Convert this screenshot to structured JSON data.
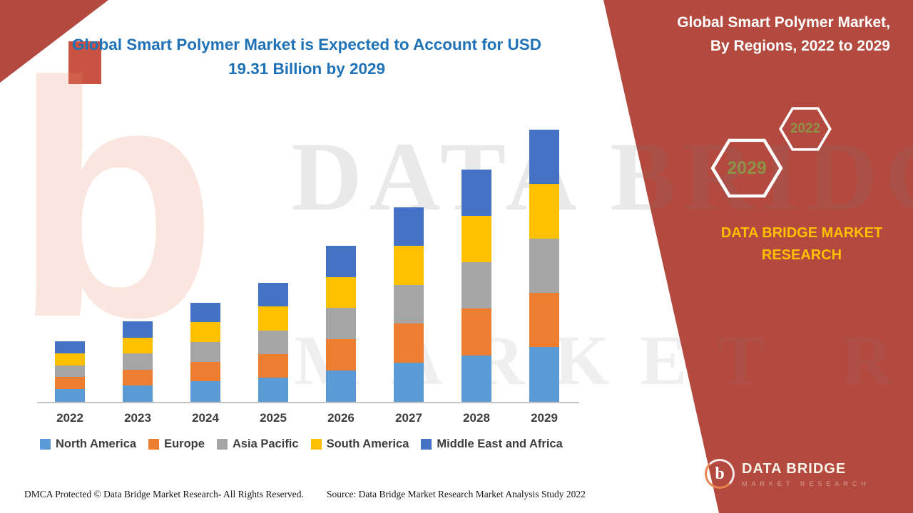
{
  "page": {
    "chart_title": "Global Smart Polymer Market is Expected to Account for USD 19.31 Billion by 2029",
    "panel_title": "Global Smart Polymer Market,\nBy Regions, 2022 to 2029",
    "brand_title": "DATA BRIDGE MARKET RESEARCH",
    "hex_year_left": "2029",
    "hex_year_right": "2022",
    "watermark_line1": "DATA BRIDGE",
    "watermark_line2": "MARKET RESEARCH",
    "watermark_logo_glyph": "b",
    "logo_glyph": "b",
    "logo_text": "DATA BRIDGE",
    "logo_subtext": "MARKET RESEARCH",
    "footer_dmca": "DMCA Protected © Data Bridge Market Research- All Rights Reserved.",
    "footer_source": "Source: Data Bridge Market Research Market Analysis Study 2022"
  },
  "colors": {
    "accent_red": "#B4493F",
    "title_blue": "#1F72B8",
    "brand_yellow": "#FFC000",
    "hex_year_olive": "#8E9248"
  },
  "chart_data": {
    "type": "bar",
    "stacked": true,
    "title": "Global Smart Polymer Market is Expected to Account for USD 19.31 Billion by 2029",
    "unit": "USD Billion",
    "xlabel": "",
    "ylabel": "",
    "grid": false,
    "legend_position": "bottom",
    "ylim": [
      0,
      20
    ],
    "categories": [
      "2022",
      "2023",
      "2024",
      "2025",
      "2026",
      "2027",
      "2028",
      "2029"
    ],
    "series": [
      {
        "name": "North America",
        "color": "#5B9BD5",
        "values": [
          0.9,
          1.15,
          1.45,
          1.7,
          2.25,
          2.8,
          3.3,
          3.9
        ]
      },
      {
        "name": "Europe",
        "color": "#ED7D31",
        "values": [
          0.85,
          1.14,
          1.4,
          1.69,
          2.2,
          2.75,
          3.3,
          3.85
        ]
      },
      {
        "name": "Asia Pacific",
        "color": "#A5A5A5",
        "values": [
          0.85,
          1.14,
          1.4,
          1.69,
          2.2,
          2.75,
          3.3,
          3.85
        ]
      },
      {
        "name": "South America",
        "color": "#FFC000",
        "values": [
          0.85,
          1.14,
          1.4,
          1.69,
          2.2,
          2.75,
          3.3,
          3.85
        ]
      },
      {
        "name": "Middle East and Africa",
        "color": "#4472C4",
        "values": [
          0.85,
          1.13,
          1.4,
          1.68,
          2.2,
          2.75,
          3.3,
          3.86
        ]
      }
    ],
    "totals": [
      4.3,
      5.7,
      7.05,
      8.45,
      11.05,
      13.8,
      16.5,
      19.31
    ]
  }
}
